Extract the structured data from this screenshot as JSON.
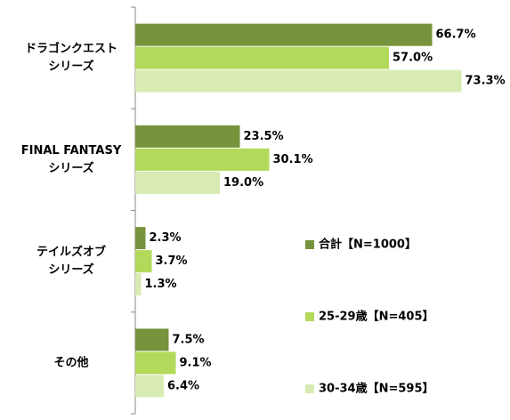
{
  "chart_data": {
    "type": "barh",
    "categories": [
      [
        "ドラゴンクエスト",
        "シリーズ"
      ],
      [
        "FINAL FANTASY",
        "シリーズ"
      ],
      [
        "テイルズオブ",
        "シリーズ"
      ],
      [
        "その他"
      ]
    ],
    "series": [
      {
        "name": "合計【N=1000】",
        "color": "#77933c",
        "values": [
          66.7,
          23.5,
          2.3,
          7.5
        ],
        "value_labels": [
          "66.7%",
          "23.5%",
          "2.3%",
          "7.5%"
        ]
      },
      {
        "name": "25-29歳【N=405】",
        "color": "#b3d95a",
        "values": [
          57.0,
          30.1,
          3.7,
          9.1
        ],
        "value_labels": [
          "57.0%",
          "30.1%",
          "3.7%",
          "9.1%"
        ]
      },
      {
        "name": "30-34歳【N=595】",
        "color": "#d8ebb3",
        "values": [
          73.3,
          19.0,
          1.3,
          6.4
        ],
        "value_labels": [
          "73.3%",
          "19.0%",
          "1.3%",
          "6.4%"
        ]
      }
    ],
    "xlim": [
      0,
      84
    ],
    "legend": "lower right"
  }
}
